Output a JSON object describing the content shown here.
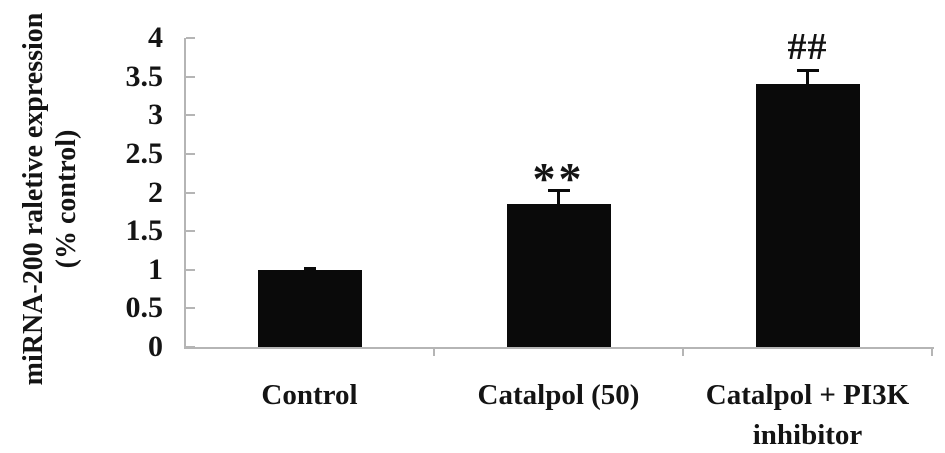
{
  "chart_data": {
    "type": "bar",
    "title": "",
    "categories": [
      "Control",
      "Catalpol (50)",
      "Catalpol + PI3K inhibitor"
    ],
    "values": [
      1.0,
      1.85,
      3.4
    ],
    "errors": [
      0.03,
      0.2,
      0.2
    ],
    "significance_labels": [
      "",
      "**",
      "##"
    ],
    "ylabel_line1": "miRNA-200 raletive expression",
    "ylabel_line2": "(% control)",
    "xlabel": "",
    "ylim": [
      0,
      4
    ],
    "yticks": [
      0,
      0.5,
      1,
      1.5,
      2,
      2.5,
      3,
      3.5,
      4
    ],
    "grid": false,
    "legend": "none",
    "bar_color": "#0a0a0a",
    "axis_color": "#b5b5b5",
    "text_color": "#141414",
    "background": "#ffffff"
  }
}
